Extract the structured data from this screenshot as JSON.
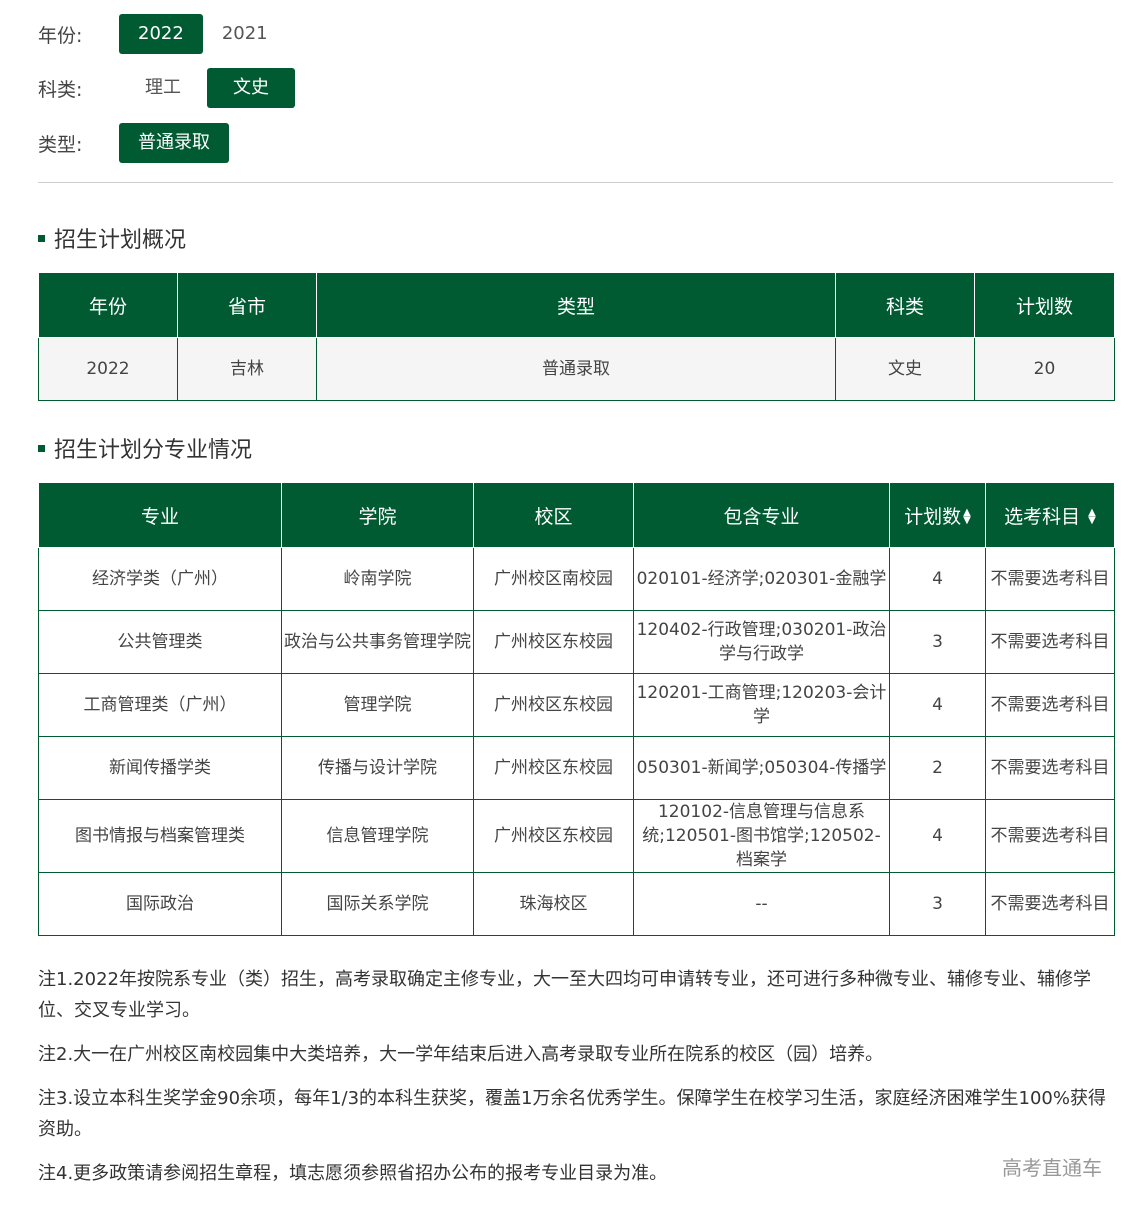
{
  "filters": {
    "year": {
      "label": "年份:",
      "options": [
        "2022",
        "2021"
      ],
      "selected": "2022"
    },
    "category": {
      "label": "科类:",
      "options": [
        "理工",
        "文史"
      ],
      "selected": "文史"
    },
    "type": {
      "label": "类型:",
      "options": [
        "普通录取"
      ],
      "selected": "普通录取"
    }
  },
  "overview": {
    "title": "招生计划概况",
    "headers": [
      "年份",
      "省市",
      "类型",
      "科类",
      "计划数"
    ],
    "row": [
      "2022",
      "吉林",
      "普通录取",
      "文史",
      "20"
    ]
  },
  "majors": {
    "title": "招生计划分专业情况",
    "headers": [
      "专业",
      "学院",
      "校区",
      "包含专业",
      "计划数",
      "选考科目"
    ],
    "rows": [
      [
        "经济学类（广州）",
        "岭南学院",
        "广州校区南校园",
        "020101-经济学;020301-金融学",
        "4",
        "不需要选考科目"
      ],
      [
        "公共管理类",
        "政治与公共事务管理学院",
        "广州校区东校园",
        "120402-行政管理;030201-政治学与行政学",
        "3",
        "不需要选考科目"
      ],
      [
        "工商管理类（广州）",
        "管理学院",
        "广州校区东校园",
        "120201-工商管理;120203-会计学",
        "4",
        "不需要选考科目"
      ],
      [
        "新闻传播学类",
        "传播与设计学院",
        "广州校区东校园",
        "050301-新闻学;050304-传播学",
        "2",
        "不需要选考科目"
      ],
      [
        "图书情报与档案管理类",
        "信息管理学院",
        "广州校区东校园",
        "120102-信息管理与信息系统;120501-图书馆学;120502-档案学",
        "4",
        "不需要选考科目"
      ],
      [
        "国际政治",
        "国际关系学院",
        "珠海校区",
        "--",
        "3",
        "不需要选考科目"
      ]
    ]
  },
  "notes": [
    "注1.2022年按院系专业（类）招生，高考录取确定主修专业，大一至大四均可申请转专业，还可进行多种微专业、辅修专业、辅修学位、交叉专业学习。",
    "注2.大一在广州校区南校园集中大类培养，大一学年结束后进入高考录取专业所在院系的校区（园）培养。",
    "注3.设立本科生奖学金90余项，每年1/3的本科生获奖，覆盖1万余名优秀学生。保障学生在校学习生活，家庭经济困难学生100%获得资助。",
    "注4.更多政策请参阅招生章程，填志愿须参照省招办公布的报考专业目录为准。"
  ],
  "watermark": "高考直通车",
  "colors": {
    "accent": "#005a32"
  }
}
